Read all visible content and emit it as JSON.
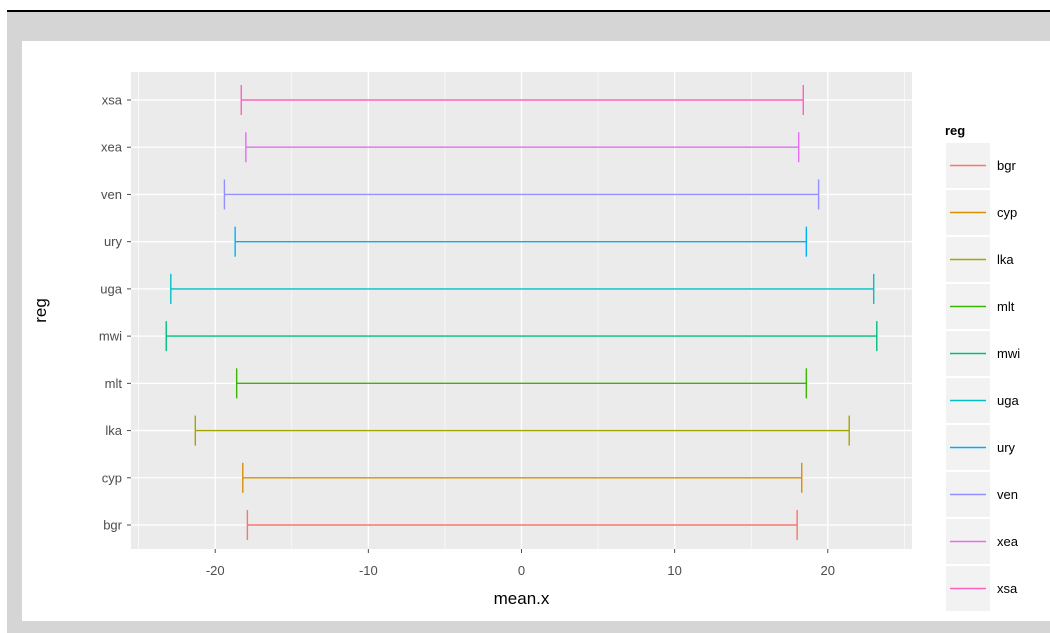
{
  "chart_data": {
    "type": "errorbar",
    "xlabel": "mean.x",
    "ylabel": "reg",
    "xlim": [
      -25.5,
      25.5
    ],
    "x_ticks": [
      -20,
      -10,
      0,
      10,
      20
    ],
    "categories": [
      "bgr",
      "cyp",
      "lka",
      "mlt",
      "mwi",
      "uga",
      "ury",
      "ven",
      "xea",
      "xsa"
    ],
    "series": [
      {
        "name": "bgr",
        "xmin": -17.9,
        "xmax": 18.0,
        "color": "#F8766D"
      },
      {
        "name": "cyp",
        "xmin": -18.2,
        "xmax": 18.3,
        "color": "#D89000"
      },
      {
        "name": "lka",
        "xmin": -21.3,
        "xmax": 21.4,
        "color": "#A3A500"
      },
      {
        "name": "mlt",
        "xmin": -18.6,
        "xmax": 18.6,
        "color": "#39B600"
      },
      {
        "name": "mwi",
        "xmin": -23.2,
        "xmax": 23.2,
        "color": "#00BF7D"
      },
      {
        "name": "uga",
        "xmin": -22.9,
        "xmax": 23.0,
        "color": "#00BFC4"
      },
      {
        "name": "ury",
        "xmin": -18.7,
        "xmax": 18.6,
        "color": "#00B0F6"
      },
      {
        "name": "ven",
        "xmin": -19.4,
        "xmax": 19.4,
        "color": "#9590FF"
      },
      {
        "name": "xea",
        "xmin": -18.0,
        "xmax": 18.1,
        "color": "#E76BF3"
      },
      {
        "name": "xsa",
        "xmin": -18.3,
        "xmax": 18.4,
        "color": "#FF62BC"
      }
    ],
    "legend": {
      "title": "reg",
      "placement": "right"
    },
    "grid": true,
    "panel_background": "#EBEBEB"
  }
}
